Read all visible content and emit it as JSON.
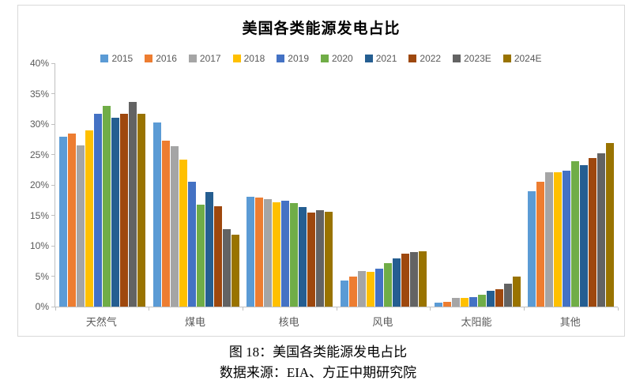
{
  "figure": {
    "caption_line1": "图 18：美国各类能源发电占比",
    "caption_line2": "数据来源：EIA、方正中期研究院"
  },
  "chart_data": {
    "type": "bar",
    "title": "美国各类能源发电占比",
    "categories": [
      "天然气",
      "煤电",
      "核电",
      "风电",
      "太阳能",
      "其他"
    ],
    "series": [
      {
        "name": "2015",
        "color": "#5B9BD5",
        "values": [
          27.9,
          30.3,
          18.0,
          4.3,
          0.6,
          19.0
        ]
      },
      {
        "name": "2016",
        "color": "#ED7D31",
        "values": [
          28.4,
          27.3,
          17.9,
          4.9,
          0.8,
          20.5
        ]
      },
      {
        "name": "2017",
        "color": "#A5A5A5",
        "values": [
          26.5,
          26.4,
          17.7,
          5.8,
          1.4,
          22.1
        ]
      },
      {
        "name": "2018",
        "color": "#FFC000",
        "values": [
          29.0,
          24.2,
          17.2,
          5.7,
          1.4,
          22.1
        ]
      },
      {
        "name": "2019",
        "color": "#4472C4",
        "values": [
          31.7,
          20.5,
          17.4,
          6.3,
          1.6,
          22.4
        ]
      },
      {
        "name": "2020",
        "color": "#70AD47",
        "values": [
          33.0,
          16.7,
          17.0,
          7.2,
          2.0,
          23.9
        ]
      },
      {
        "name": "2021",
        "color": "#255E91",
        "values": [
          31.0,
          18.8,
          16.4,
          7.9,
          2.6,
          23.2
        ]
      },
      {
        "name": "2022",
        "color": "#9E480E",
        "values": [
          31.7,
          16.5,
          15.5,
          8.7,
          2.9,
          24.4
        ]
      },
      {
        "name": "2023E",
        "color": "#636363",
        "values": [
          33.7,
          12.7,
          15.8,
          9.0,
          3.8,
          25.2
        ]
      },
      {
        "name": "2024E",
        "color": "#997300",
        "values": [
          31.7,
          11.8,
          15.6,
          9.1,
          4.9,
          26.9
        ]
      }
    ],
    "ylim": [
      0,
      40
    ],
    "ytick_step": 5,
    "ytick_suffix": "%",
    "grid": false,
    "legend_position": "top"
  },
  "style": {
    "axis_color": "#BFBFBF",
    "label_color": "#595959",
    "chart_border_color": "#D9D9D9"
  }
}
